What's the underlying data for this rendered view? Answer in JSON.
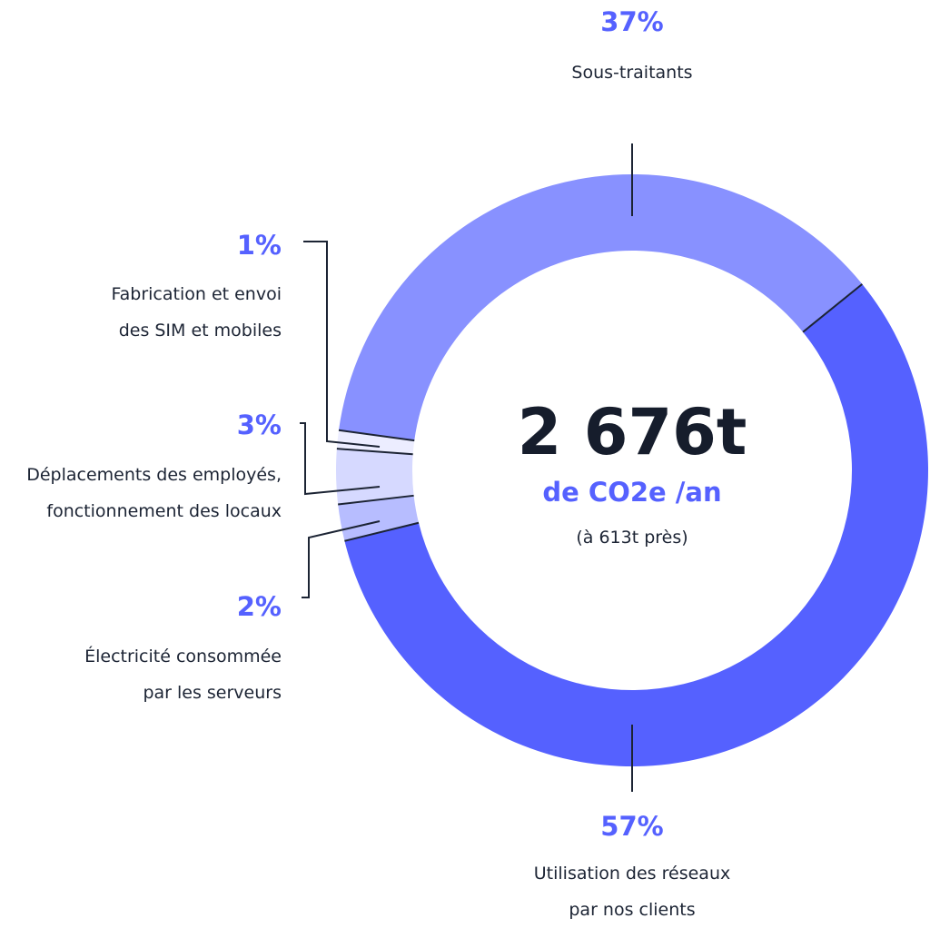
{
  "chart_data": {
    "type": "pie",
    "style": "donut",
    "center": {
      "total": "2 676t",
      "unit": "de CO2e /an",
      "note": "(à 613t près)"
    },
    "slices": [
      {
        "percent": 57,
        "label": "57%",
        "name": [
          "Utilisation des réseaux",
          "par nos clients"
        ],
        "color": "#5561ff"
      },
      {
        "percent": 2,
        "label": "2%",
        "name": [
          "Électricité consommée",
          "par les serveurs"
        ],
        "color": "#b7bdff"
      },
      {
        "percent": 3,
        "label": "3%",
        "name": [
          "Déplacements des employés,",
          "fonctionnement des locaux"
        ],
        "color": "#d6d9ff"
      },
      {
        "percent": 1,
        "label": "1%",
        "name": [
          "Fabrication et envoi",
          "des SIM et mobiles"
        ],
        "color": "#ecedff"
      },
      {
        "percent": 37,
        "label": "37%",
        "name": [
          "Sous-traitants"
        ],
        "color": "#8891ff"
      }
    ],
    "accent_color": "#5561ff",
    "separator_color": "#1c2434"
  }
}
